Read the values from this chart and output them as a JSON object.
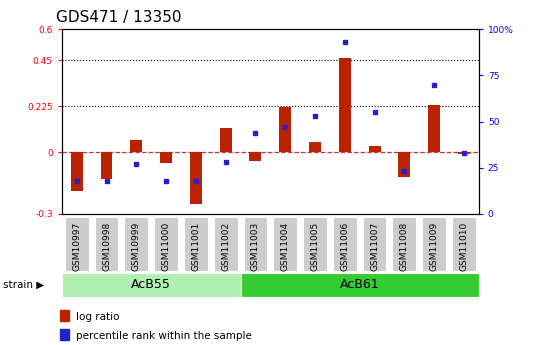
{
  "title": "GDS471 / 13350",
  "samples": [
    "GSM10997",
    "GSM10998",
    "GSM10999",
    "GSM11000",
    "GSM11001",
    "GSM11002",
    "GSM11003",
    "GSM11004",
    "GSM11005",
    "GSM11006",
    "GSM11007",
    "GSM11008",
    "GSM11009",
    "GSM11010"
  ],
  "log_ratio": [
    -0.19,
    -0.13,
    0.06,
    -0.05,
    -0.25,
    0.12,
    -0.04,
    0.22,
    0.05,
    0.46,
    0.03,
    -0.12,
    0.23,
    -0.01
  ],
  "pct_rank_pct": [
    18,
    18,
    27,
    18,
    18,
    28,
    44,
    47,
    53,
    93,
    55,
    23,
    70,
    33
  ],
  "groups": [
    {
      "label": "AcB55",
      "start": 0,
      "end": 6,
      "color": "#b2f0b2"
    },
    {
      "label": "AcB61",
      "start": 6,
      "end": 14,
      "color": "#33cc33"
    }
  ],
  "ylim_left": [
    -0.3,
    0.6
  ],
  "ylim_right": [
    0,
    100
  ],
  "yticks_left": [
    -0.3,
    0.0,
    0.225,
    0.45,
    0.6
  ],
  "yticks_right": [
    0,
    25,
    50,
    75,
    100
  ],
  "hlines": [
    0.225,
    0.45
  ],
  "bar_color": "#bb2200",
  "dot_color": "#2222cc",
  "dashed_line_color": "#cc3333",
  "background_color": "#ffffff",
  "sample_bg": "#cccccc",
  "title_fontsize": 11,
  "tick_fontsize": 6.5,
  "legend_bar_label": "log ratio",
  "legend_dot_label": "percentile rank within the sample"
}
